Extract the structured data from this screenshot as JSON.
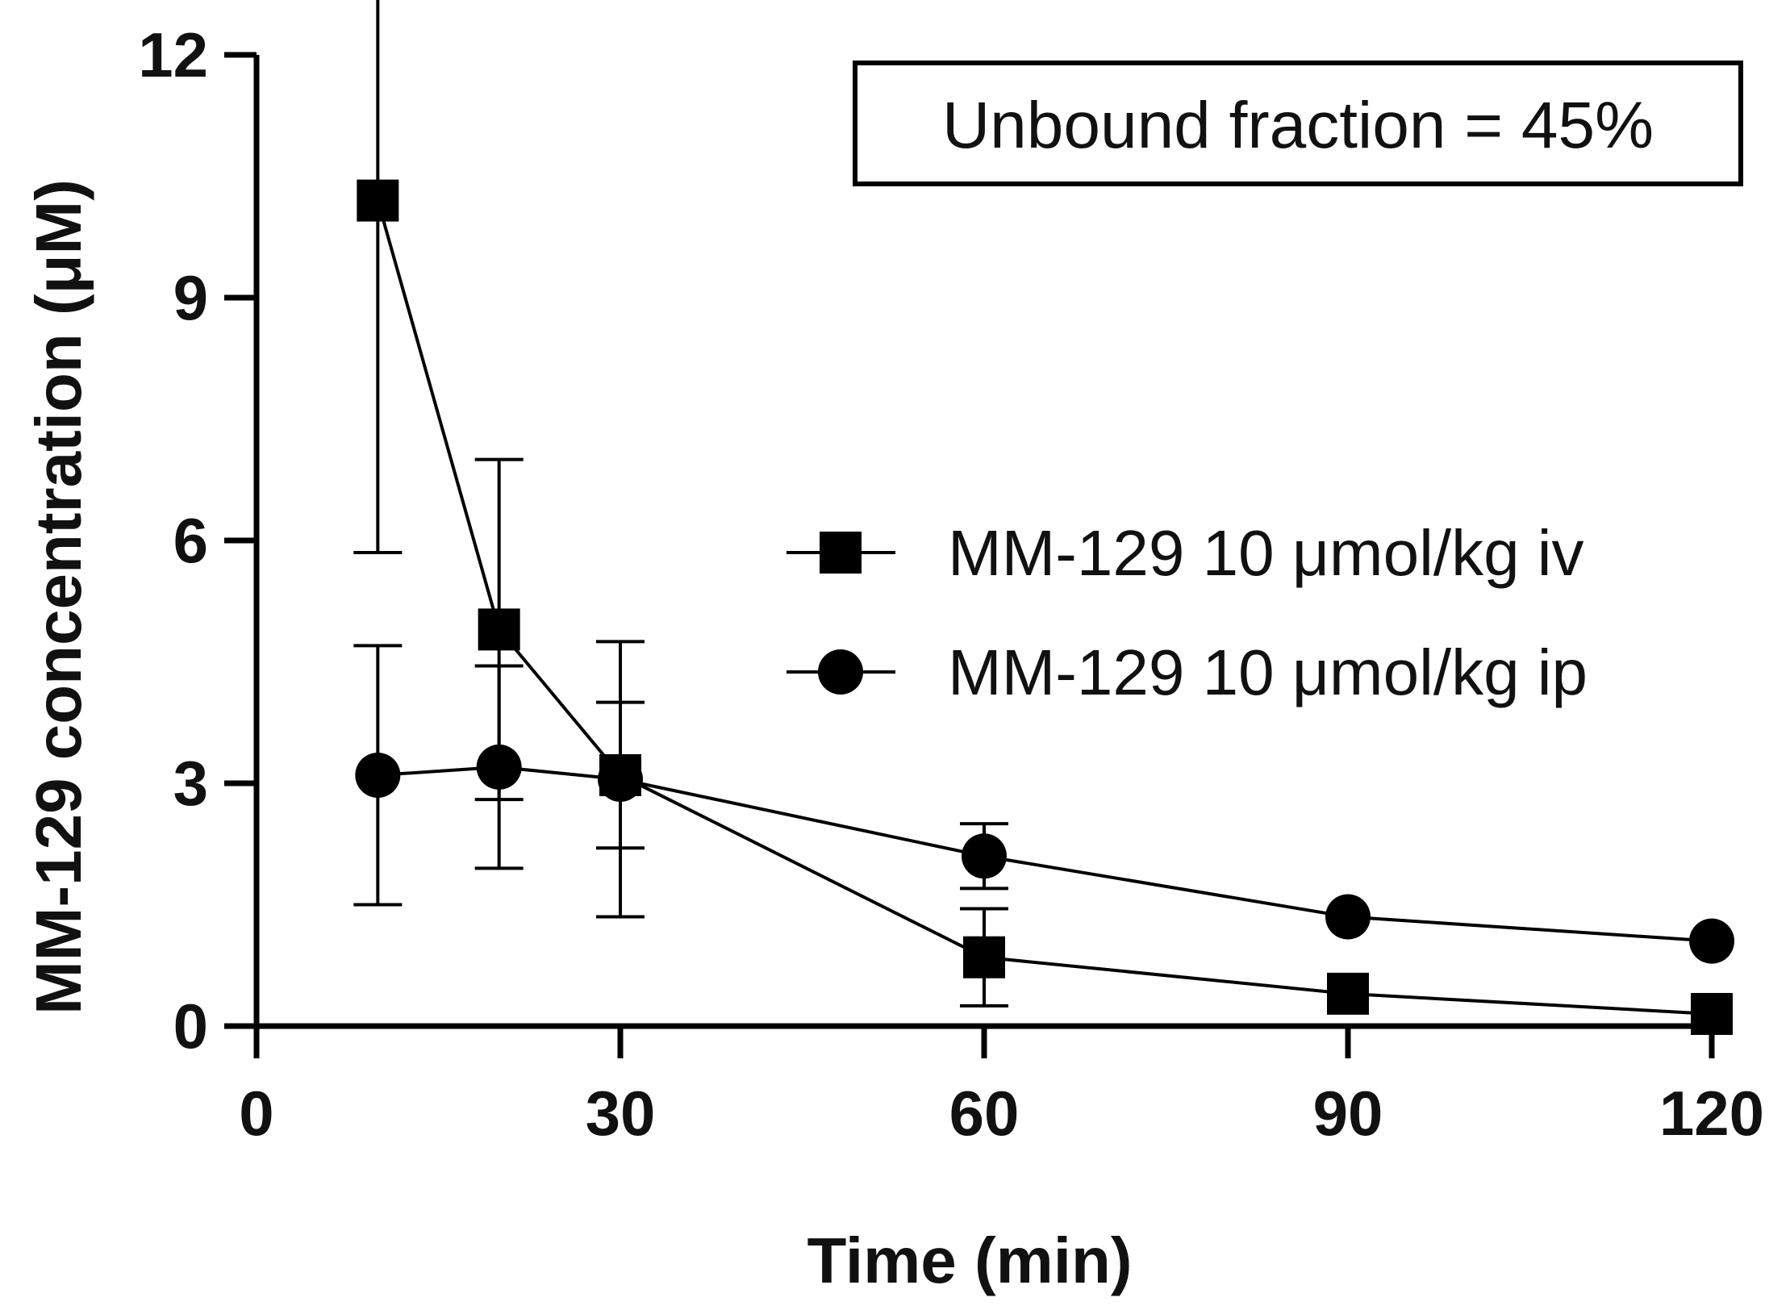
{
  "chart_data": {
    "type": "line",
    "xlabel": "Time (min)",
    "ylabel": "MM-129 concentration (μM)",
    "xlim": [
      0,
      120
    ],
    "ylim": [
      0,
      12
    ],
    "xticks": [
      0,
      30,
      60,
      90,
      120
    ],
    "yticks": [
      0,
      3,
      6,
      9,
      12
    ],
    "grid": false,
    "legend_position": "right",
    "annotation": "Unbound fraction = 45%",
    "series": [
      {
        "name": "MM-129 10 μmol/kg iv",
        "marker": "square",
        "color": "#000000",
        "x": [
          10,
          20,
          30,
          60,
          90,
          120
        ],
        "y": [
          10.2,
          4.9,
          3.1,
          0.85,
          0.4,
          0.15
        ],
        "error": [
          4.35,
          2.1,
          0.9,
          0.6,
          null,
          null
        ]
      },
      {
        "name": "MM-129 10 μmol/kg ip",
        "marker": "circle",
        "color": "#000000",
        "x": [
          10,
          20,
          30,
          60,
          90,
          120
        ],
        "y": [
          3.1,
          3.2,
          3.05,
          2.1,
          1.35,
          1.05
        ],
        "error": [
          1.6,
          1.25,
          1.7,
          0.4,
          null,
          null
        ]
      }
    ]
  }
}
